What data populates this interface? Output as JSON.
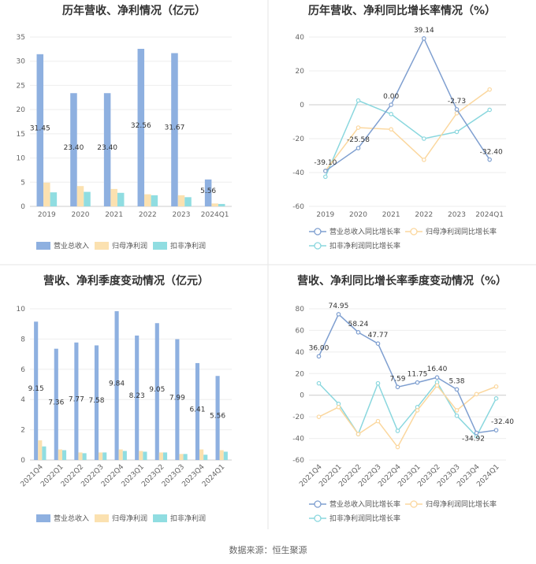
{
  "colors": {
    "revenue": "#8eb0e0",
    "netprofit": "#fbe1b0",
    "deducted": "#90dde1",
    "rev_line": "#7f9fd0",
    "np_line": "#fbd79e",
    "ded_line": "#8ad7de"
  },
  "source": "数据来源：恒生聚源",
  "chart_data": [
    {
      "type": "bar",
      "title": "历年营收、净利情况（亿元）",
      "categories": [
        "2019",
        "2020",
        "2021",
        "2022",
        "2023",
        "2024Q1"
      ],
      "ylim": [
        0,
        35
      ],
      "yticks": [
        0,
        5,
        10,
        15,
        20,
        25,
        30,
        35
      ],
      "series": [
        {
          "name": "营业总收入",
          "values": [
            31.45,
            23.4,
            23.4,
            32.56,
            31.67,
            5.56
          ]
        },
        {
          "name": "归母净利润",
          "values": [
            4.9,
            4.2,
            3.6,
            2.5,
            2.3,
            0.6
          ]
        },
        {
          "name": "扣非净利润",
          "values": [
            2.9,
            3.0,
            2.8,
            2.3,
            1.9,
            0.5
          ]
        }
      ],
      "data_labels": [
        "31.45",
        "23.40",
        "23.40",
        "32.56",
        "31.67",
        "5.56"
      ],
      "legend": "bottom"
    },
    {
      "type": "line",
      "title": "历年营收、净利同比增长率情况（%）",
      "categories": [
        "2019",
        "2020",
        "2021",
        "2022",
        "2023",
        "2024Q1"
      ],
      "ylim": [
        -60,
        40
      ],
      "yticks": [
        -60,
        -40,
        -20,
        0,
        20,
        40
      ],
      "series": [
        {
          "name": "营业总收入同比增长率",
          "values": [
            -39.1,
            -25.58,
            0.0,
            39.14,
            -2.73,
            -32.4
          ]
        },
        {
          "name": "归母净利润同比增长率",
          "values": [
            -39,
            -13.5,
            -14.5,
            -32.5,
            -5,
            9
          ]
        },
        {
          "name": "扣非净利润同比增长率",
          "values": [
            -42.5,
            2.5,
            -5.5,
            -20,
            -16,
            -3
          ]
        }
      ],
      "data_labels": [
        "-39.10",
        "-25.58",
        "0.00",
        "39.14",
        "-2.73",
        "-32.40"
      ],
      "legend": "bottom"
    },
    {
      "type": "bar",
      "title": "营收、净利季度变动情况（亿元）",
      "categories": [
        "2021Q4",
        "2022Q1",
        "2022Q2",
        "2022Q3",
        "2022Q4",
        "2023Q1",
        "2023Q2",
        "2023Q3",
        "2023Q4",
        "2024Q1"
      ],
      "ylim": [
        0,
        10
      ],
      "yticks": [
        0,
        2,
        4,
        6,
        8,
        10
      ],
      "series": [
        {
          "name": "营业总收入",
          "values": [
            9.15,
            7.36,
            7.77,
            7.58,
            9.84,
            8.23,
            9.05,
            7.99,
            6.41,
            5.56
          ]
        },
        {
          "name": "归母净利润",
          "values": [
            1.3,
            0.7,
            0.5,
            0.5,
            0.7,
            0.6,
            0.5,
            0.4,
            0.7,
            0.65
          ]
        },
        {
          "name": "扣非净利润",
          "values": [
            0.9,
            0.65,
            0.45,
            0.5,
            0.6,
            0.55,
            0.5,
            0.4,
            0.35,
            0.55
          ]
        }
      ],
      "data_labels": [
        "9.15",
        "7.36",
        "7.77",
        "7.58",
        "9.84",
        "8.23",
        "9.05",
        "7.99",
        "6.41",
        "5.56"
      ],
      "legend": "bottom"
    },
    {
      "type": "line",
      "title": "营收、净利同比增长率季度变动情况（%）",
      "categories": [
        "2021Q4",
        "2022Q1",
        "2022Q2",
        "2022Q3",
        "2022Q4",
        "2023Q1",
        "2023Q2",
        "2023Q3",
        "2023Q4",
        "2024Q1"
      ],
      "ylim": [
        -60,
        80
      ],
      "yticks": [
        -60,
        -40,
        -20,
        0,
        20,
        40,
        60,
        80
      ],
      "series": [
        {
          "name": "营业总收入同比增长率",
          "values": [
            36.0,
            74.95,
            58.24,
            47.77,
            7.59,
            11.75,
            16.4,
            5.38,
            -34.92,
            -32.4
          ]
        },
        {
          "name": "归母净利润同比增长率",
          "values": [
            -20,
            -11,
            -36,
            -24,
            -48,
            -14,
            9,
            -14,
            1,
            8
          ]
        },
        {
          "name": "扣非净利润同比增长率",
          "values": [
            11,
            -8,
            -36,
            11,
            -33,
            -11,
            12,
            -19,
            -38,
            -3
          ]
        }
      ],
      "data_labels": [
        "36.00",
        "74.95",
        "58.24",
        "47.77",
        "7.59",
        "11.75",
        "16.40",
        "5.38",
        "-34.92",
        "-32.40"
      ],
      "legend": "bottom"
    }
  ]
}
